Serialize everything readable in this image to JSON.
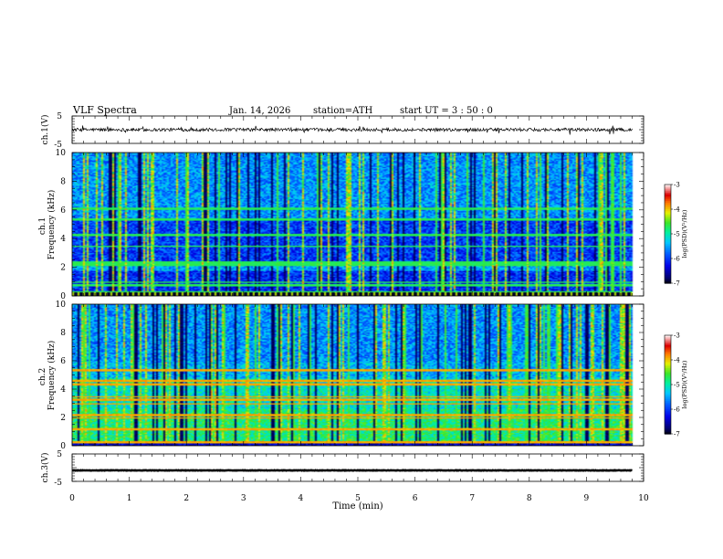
{
  "header": {
    "title": "VLF  Spectra",
    "date": "Jan. 14, 2026",
    "station": "station=ATH",
    "start_ut": "start  UT  =  3 : 50 : 0"
  },
  "chart_data": [
    {
      "type": "line",
      "name": "ch1-waveform",
      "ylabel": "ch.1(V)",
      "ylim": [
        -5,
        5
      ],
      "yticks": [
        "5",
        "-5"
      ],
      "xlim": [
        0,
        10
      ],
      "series": [
        {
          "name": "ch.1",
          "baseline": 0,
          "noise_amplitude": 1.2,
          "x_end": 9.8
        }
      ]
    },
    {
      "type": "heatmap",
      "name": "ch1-spectrogram",
      "ylabel": "ch.1\nFrequency  (kHz)",
      "ylim": [
        0,
        10
      ],
      "yticks": [
        "0",
        "2",
        "4",
        "6",
        "8",
        "10"
      ],
      "xlim": [
        0,
        10
      ],
      "x_end": 9.8,
      "colorbar": {
        "label": "log(PSD)(V²/Hz)",
        "range": [
          -7,
          -3
        ],
        "ticks": [
          "-3",
          "-4",
          "-5",
          "-6",
          "-7"
        ]
      },
      "bands_khz": [
        0.3,
        0.8,
        1.0,
        2.2,
        2.4,
        3.5,
        4.3,
        5.4,
        6.1
      ]
    },
    {
      "type": "heatmap",
      "name": "ch2-spectrogram",
      "ylabel": "ch.2\nFrequency  (kHz)",
      "ylim": [
        0,
        10
      ],
      "yticks": [
        "0",
        "2",
        "4",
        "6",
        "8",
        "10"
      ],
      "xlim": [
        0,
        10
      ],
      "x_end": 9.8,
      "colorbar": {
        "label": "log(PSD)(V²/Hz)",
        "range": [
          -7,
          -3
        ],
        "ticks": [
          "-3",
          "-4",
          "-5",
          "-6",
          "-7"
        ]
      },
      "bands_khz": [
        0.3,
        1.2,
        2.0,
        2.2,
        3.0,
        3.3,
        3.5,
        4.4,
        4.6,
        5.4
      ]
    },
    {
      "type": "line",
      "name": "ch3-waveform",
      "ylabel": "ch.3(V)",
      "ylim": [
        -5,
        5
      ],
      "yticks": [
        "5",
        "-5"
      ],
      "xlim": [
        0,
        10
      ],
      "series": [
        {
          "name": "ch.3",
          "baseline": -1.0,
          "noise_amplitude": 0.15,
          "x_end": 9.8
        }
      ]
    }
  ],
  "xaxis": {
    "label": "Time  (min)",
    "ticks": [
      "0",
      "1",
      "2",
      "3",
      "4",
      "5",
      "6",
      "7",
      "8",
      "9",
      "10"
    ]
  }
}
